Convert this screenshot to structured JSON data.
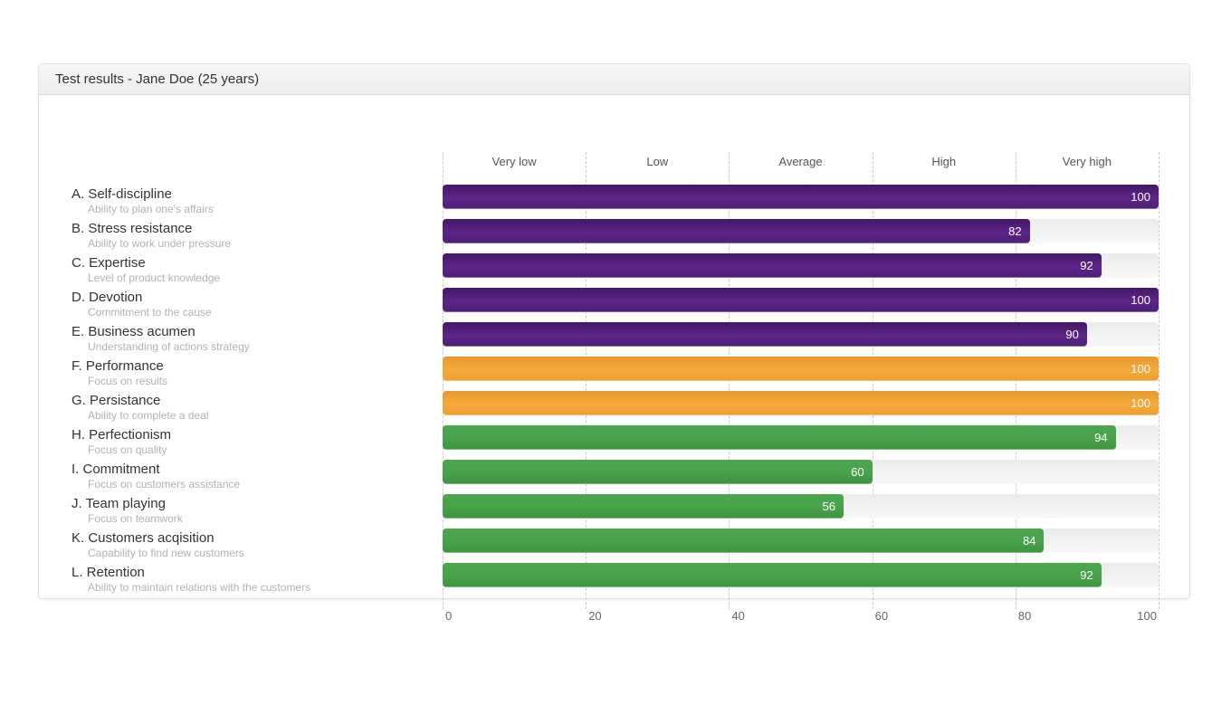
{
  "panel": {
    "title": "Test results - Jane Doe (25 years)"
  },
  "chart_data": {
    "type": "bar",
    "orientation": "horizontal",
    "title": "Test results - Jane Doe (25 years)",
    "xlabel": "",
    "ylabel": "",
    "xlim": [
      0,
      100
    ],
    "x_ticks": [
      0,
      20,
      40,
      60,
      80,
      100
    ],
    "grid": "vertical-dashed",
    "legend_position": "none",
    "zone_labels": [
      "Very low",
      "Low",
      "Average",
      "High",
      "Very high"
    ],
    "colors": {
      "purple": "#5e2589",
      "orange": "#f0a231",
      "green": "#45a048",
      "track": "#f0f0f0",
      "grid": "#cccccc",
      "value_text": "#ffffff"
    },
    "rows": [
      {
        "id": "A",
        "label": "A. Self-discipline",
        "description": "Ability to plan one's affairs",
        "value": 100,
        "group": "purple"
      },
      {
        "id": "B",
        "label": "B. Stress resistance",
        "description": "Ability to work under pressure",
        "value": 82,
        "group": "purple"
      },
      {
        "id": "C",
        "label": "C. Expertise",
        "description": "Level of product knowledge",
        "value": 92,
        "group": "purple"
      },
      {
        "id": "D",
        "label": "D. Devotion",
        "description": "Commitment to the cause",
        "value": 100,
        "group": "purple"
      },
      {
        "id": "E",
        "label": "E. Business acumen",
        "description": "Understanding of actions strategy",
        "value": 90,
        "group": "purple"
      },
      {
        "id": "F",
        "label": "F. Performance",
        "description": "Focus on results",
        "value": 100,
        "group": "orange"
      },
      {
        "id": "G",
        "label": "G. Persistance",
        "description": "Ability to complete a deal",
        "value": 100,
        "group": "orange"
      },
      {
        "id": "H",
        "label": "H. Perfectionism",
        "description": "Focus on quality",
        "value": 94,
        "group": "green"
      },
      {
        "id": "I",
        "label": "I.  Commitment",
        "description": "Focus on customers assistance",
        "value": 60,
        "group": "green"
      },
      {
        "id": "J",
        "label": "J. Team playing",
        "description": "Focus on teamwork",
        "value": 56,
        "group": "green"
      },
      {
        "id": "K",
        "label": "K. Customers acqisition",
        "description": "Capability to find new customers",
        "value": 84,
        "group": "green"
      },
      {
        "id": "L",
        "label": "L. Retention",
        "description": "Ability to maintain relations with the customers",
        "value": 92,
        "group": "green"
      }
    ]
  }
}
